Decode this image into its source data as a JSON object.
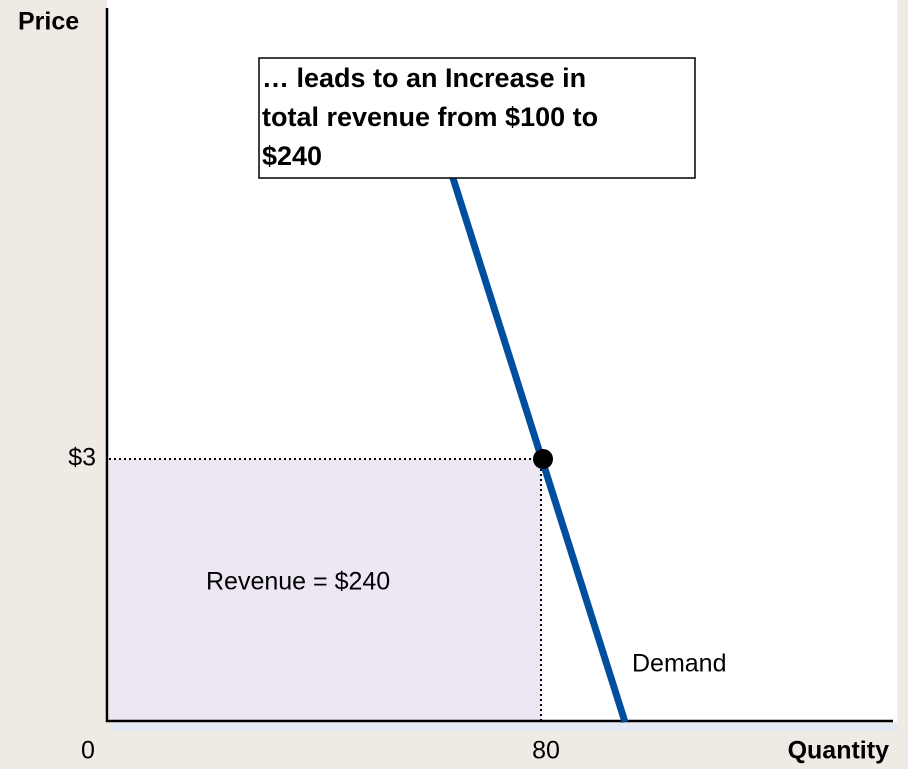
{
  "axes": {
    "y_label": "Price",
    "x_label": "Quantity",
    "origin": "0",
    "price_tick": "$3",
    "quantity_tick": "80"
  },
  "annotation": {
    "lines": [
      "… leads to an Increase in",
      "total revenue from $100 to",
      "$240"
    ]
  },
  "revenue_label": "Revenue = $240",
  "curve_label": "Demand"
}
